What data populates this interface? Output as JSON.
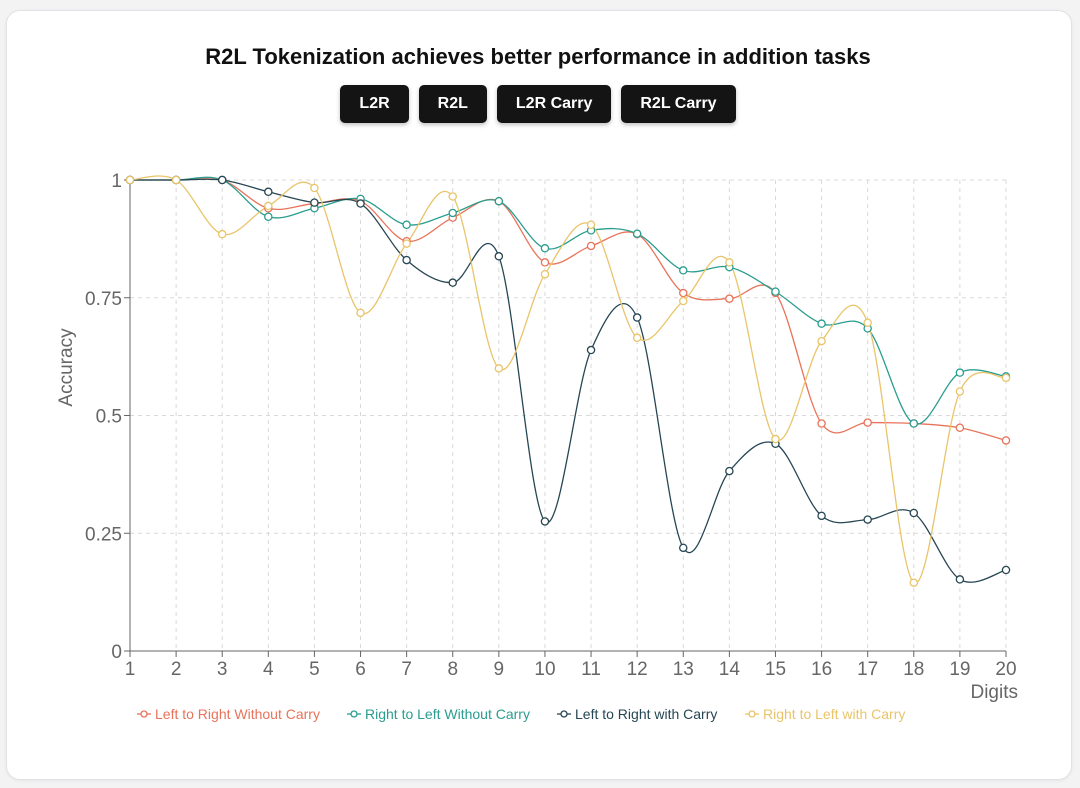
{
  "title": "R2L Tokenization achieves better performance in addition tasks",
  "tabs": [
    "L2R",
    "R2L",
    "L2R Carry",
    "R2L Carry"
  ],
  "chart_data": {
    "type": "line",
    "title": "R2L Tokenization achieves better performance in addition tasks",
    "xlabel": "Digits",
    "ylabel": "Accuracy",
    "x": [
      1,
      2,
      3,
      4,
      5,
      6,
      7,
      8,
      9,
      10,
      11,
      12,
      13,
      14,
      15,
      16,
      17,
      18,
      19,
      20
    ],
    "ylim": [
      0,
      1
    ],
    "yticks": [
      0,
      0.25,
      0.5,
      0.75,
      1
    ],
    "ytick_labels": [
      "0",
      "0.25",
      "0.5",
      "0.75",
      "1"
    ],
    "grid": true,
    "legend_position": "bottom",
    "series": [
      {
        "name": "Left to Right Without Carry",
        "color": "#e8735a",
        "values": [
          1.0,
          1.0,
          1.0,
          0.94,
          0.95,
          0.955,
          0.87,
          0.92,
          0.955,
          0.825,
          0.86,
          0.885,
          0.76,
          0.748,
          0.76,
          0.483,
          0.485,
          0.483,
          0.474,
          0.447
        ]
      },
      {
        "name": "Right to Left Without Carry",
        "color": "#2a9d8f",
        "values": [
          1.0,
          1.0,
          1.0,
          0.922,
          0.94,
          0.96,
          0.905,
          0.93,
          0.955,
          0.855,
          0.893,
          0.886,
          0.808,
          0.815,
          0.763,
          0.695,
          0.685,
          0.483,
          0.591,
          0.583
        ]
      },
      {
        "name": "Left to Right with Carry",
        "color": "#264653",
        "values": [
          1.0,
          1.0,
          1.0,
          0.975,
          0.952,
          0.95,
          0.83,
          0.782,
          0.838,
          0.275,
          0.639,
          0.708,
          0.219,
          0.382,
          0.44,
          0.287,
          0.279,
          0.293,
          0.152,
          0.172
        ]
      },
      {
        "name": "Right to Left with Carry",
        "color": "#e9c46a",
        "values": [
          1.0,
          1.0,
          0.885,
          0.945,
          0.983,
          0.718,
          0.865,
          0.965,
          0.6,
          0.8,
          0.905,
          0.665,
          0.743,
          0.825,
          0.45,
          0.658,
          0.697,
          0.145,
          0.551,
          0.58
        ]
      }
    ]
  }
}
